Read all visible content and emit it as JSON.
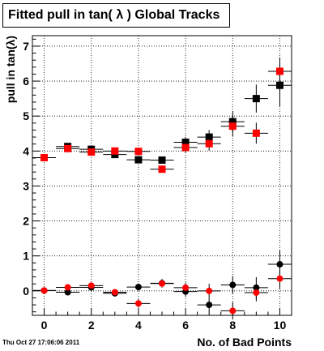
{
  "chart_data": {
    "type": "scatter",
    "title": "Fitted pull in tan( λ )  Global Tracks",
    "xlabel": "No. of Bad Points",
    "ylabel": "pull in tan(λ)",
    "xlim": [
      -0.5,
      10.5
    ],
    "ylim": [
      -0.7,
      7.3
    ],
    "x_ticks": [
      0,
      2,
      4,
      6,
      8,
      10
    ],
    "y_ticks": [
      0,
      1,
      2,
      3,
      4,
      5,
      6,
      7
    ],
    "grid": true,
    "legend": "none",
    "series": [
      {
        "marker": "square",
        "color": "#000000",
        "points": [
          {
            "x": 1,
            "y": 4.13,
            "yerr": 0.06
          },
          {
            "x": 2,
            "y": 4.05,
            "yerr": 0.06
          },
          {
            "x": 3,
            "y": 3.9,
            "yerr": 0.08
          },
          {
            "x": 4,
            "y": 3.75,
            "yerr": 0.08
          },
          {
            "x": 5,
            "y": 3.74,
            "yerr": 0.1
          },
          {
            "x": 6,
            "y": 4.25,
            "yerr": 0.15
          },
          {
            "x": 7,
            "y": 4.4,
            "yerr": 0.2
          },
          {
            "x": 8,
            "y": 4.84,
            "yerr": 0.3
          },
          {
            "x": 9,
            "y": 5.5,
            "yerr": 0.4
          },
          {
            "x": 10,
            "y": 5.88,
            "yerr": 0.6
          }
        ]
      },
      {
        "marker": "square",
        "color": "#ff0000",
        "points": [
          {
            "x": 0,
            "y": 3.81,
            "yerr": 0.06
          },
          {
            "x": 1,
            "y": 4.07,
            "yerr": 0.06
          },
          {
            "x": 2,
            "y": 3.97,
            "yerr": 0.06
          },
          {
            "x": 3,
            "y": 4.0,
            "yerr": 0.08
          },
          {
            "x": 4,
            "y": 3.99,
            "yerr": 0.08
          },
          {
            "x": 5,
            "y": 3.48,
            "yerr": 0.1
          },
          {
            "x": 6,
            "y": 4.1,
            "yerr": 0.15
          },
          {
            "x": 7,
            "y": 4.21,
            "yerr": 0.2
          },
          {
            "x": 8,
            "y": 4.71,
            "yerr": 0.3
          },
          {
            "x": 9,
            "y": 4.51,
            "yerr": 0.3
          },
          {
            "x": 10,
            "y": 6.28,
            "yerr": 0.4
          }
        ]
      },
      {
        "marker": "circle",
        "color": "#000000",
        "points": [
          {
            "x": 0,
            "y": 0.01,
            "yerr": 0.06
          },
          {
            "x": 1,
            "y": -0.04,
            "yerr": 0.06
          },
          {
            "x": 2,
            "y": 0.1,
            "yerr": 0.06
          },
          {
            "x": 3,
            "y": -0.07,
            "yerr": 0.08
          },
          {
            "x": 4,
            "y": 0.11,
            "yerr": 0.1
          },
          {
            "x": 5,
            "y": 0.22,
            "yerr": 0.12
          },
          {
            "x": 6,
            "y": -0.02,
            "yerr": 0.15
          },
          {
            "x": 7,
            "y": -0.4,
            "yerr": 0.2
          },
          {
            "x": 8,
            "y": 0.17,
            "yerr": 0.25
          },
          {
            "x": 9,
            "y": 0.09,
            "yerr": 0.3
          },
          {
            "x": 10,
            "y": 0.76,
            "yerr": 0.4
          }
        ]
      },
      {
        "marker": "circle",
        "color": "#ff0000",
        "points": [
          {
            "x": 0,
            "y": 0.01,
            "yerr": 0.06
          },
          {
            "x": 1,
            "y": 0.1,
            "yerr": 0.06
          },
          {
            "x": 2,
            "y": 0.15,
            "yerr": 0.06
          },
          {
            "x": 3,
            "y": -0.04,
            "yerr": 0.08
          },
          {
            "x": 4,
            "y": -0.36,
            "yerr": 0.12
          },
          {
            "x": 5,
            "y": 0.21,
            "yerr": 0.12
          },
          {
            "x": 6,
            "y": 0.09,
            "yerr": 0.15
          },
          {
            "x": 7,
            "y": 0.0,
            "yerr": 0.2
          },
          {
            "x": 8,
            "y": -0.57,
            "yerr": 0.25
          },
          {
            "x": 9,
            "y": -0.05,
            "yerr": 0.25
          },
          {
            "x": 10,
            "y": 0.35,
            "yerr": 0.3
          }
        ]
      }
    ]
  },
  "timestamp": "Thu Oct 27 17:06:06 2011"
}
